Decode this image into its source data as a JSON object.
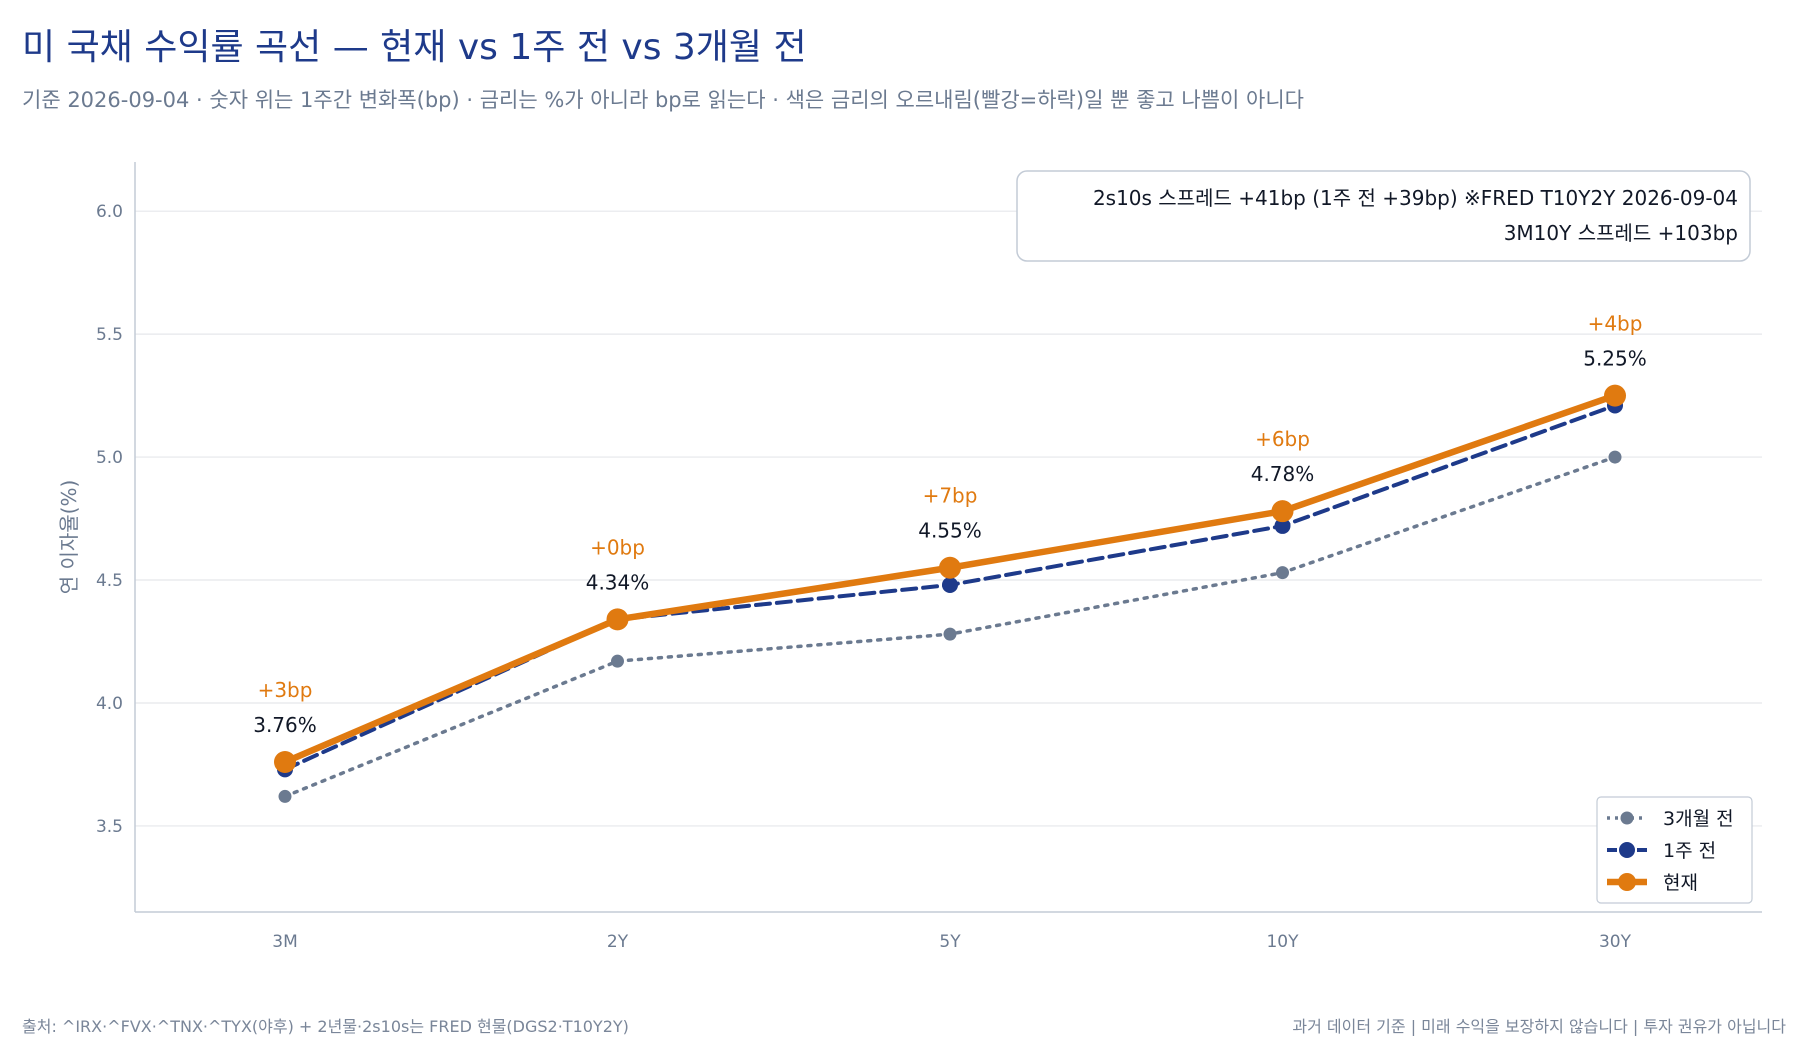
{
  "title": "미 국채 수익률 곡선 — 현재 vs 1주 전 vs 3개월 전",
  "subtitle": "기준 2026-09-04 · 숫자 위는 1주간 변화폭(bp) · 금리는 %가 아니라 bp로 읽는다 · 색은 금리의 오르내림(빨강=하락)일 뿐 좋고 나쁨이 아니다",
  "footer": {
    "source": "출처: ^IRX·^FVX·^TNX·^TYX(야후) + 2년물·2s10s는 FRED 현물(DGS2·T10Y2Y)",
    "disclaimer": "과거 데이터 기준 | 미래 수익을 보장하지 않습니다 | 투자 권유가 아닙니다"
  },
  "annotation": {
    "line1": "2s10s 스프레드 +41bp (1주 전 +39bp)  ※FRED T10Y2Y 2026-09-04",
    "line2": "3M10Y 스프레드 +103bp"
  },
  "colors": {
    "current": "#e07a10",
    "week_ago": "#1e3a8a",
    "three_months_ago": "#6b7a90",
    "grid": "#e5e7eb",
    "axis": "#c3cbd6"
  },
  "chart_data": {
    "type": "line",
    "categories": [
      "3M",
      "2Y",
      "5Y",
      "10Y",
      "30Y"
    ],
    "ylabel": "연 이자율(%)",
    "ylim": [
      3.15,
      6.2
    ],
    "yticks": [
      "3.5",
      "4.0",
      "4.5",
      "5.0",
      "5.5",
      "6.0"
    ],
    "grid": true,
    "legend_position": "bottom-right",
    "series": [
      {
        "name": "3개월 전",
        "style": "dotted",
        "values": [
          3.62,
          4.17,
          4.28,
          4.53,
          5.0
        ]
      },
      {
        "name": "1주 전",
        "style": "dashed",
        "values": [
          3.73,
          4.34,
          4.48,
          4.72,
          5.21
        ]
      },
      {
        "name": "현재",
        "style": "solid",
        "values": [
          3.76,
          4.34,
          4.55,
          4.78,
          5.25
        ]
      }
    ],
    "value_labels": [
      "3.76%",
      "4.34%",
      "4.55%",
      "4.78%",
      "5.25%"
    ],
    "change_labels": [
      "+3bp",
      "+0bp",
      "+7bp",
      "+6bp",
      "+4bp"
    ]
  }
}
